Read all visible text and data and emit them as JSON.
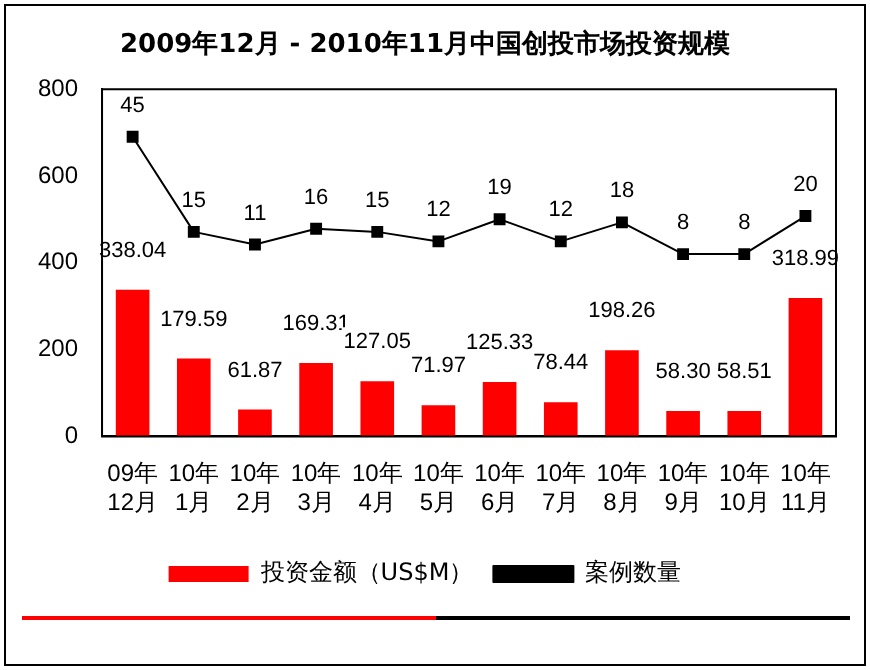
{
  "chart_data": {
    "type": "bar",
    "title": "2009年12月 - 2010年11月中国创投市场投资规模",
    "categories": [
      "09年\n12月",
      "10年\n1月",
      "10年\n2月",
      "10年\n3月",
      "10年\n4月",
      "10年\n5月",
      "10年\n6月",
      "10年\n7月",
      "10年\n8月",
      "10年\n9月",
      "10年\n10月",
      "10年\n11月"
    ],
    "series": [
      {
        "name": "投资金额（US$M）",
        "color": "#ff0000",
        "values": [
          338.04,
          179.59,
          61.87,
          169.31,
          127.05,
          71.97,
          125.33,
          78.44,
          198.26,
          58.3,
          58.51,
          318.99
        ],
        "value_labels": [
          "338.04",
          "179.59",
          "61.87",
          "169.31",
          "127.05",
          "71.97",
          "125.33",
          "78.44",
          "198.26",
          "58.30",
          "58.51",
          "318.99"
        ]
      },
      {
        "name": "案例数量",
        "type": "line",
        "axis": "y2",
        "color": "#000000",
        "values": [
          45,
          15,
          11,
          16,
          15,
          12,
          19,
          12,
          18,
          8,
          8,
          20
        ]
      }
    ],
    "ylim": [
      0,
      800
    ],
    "yticks": [
      0,
      200,
      400,
      600,
      800
    ],
    "y2lim": [
      -49.5,
      60
    ],
    "data_labels": true,
    "marker": "square",
    "line_style": "solid",
    "grid": false,
    "legend": "bottom"
  }
}
